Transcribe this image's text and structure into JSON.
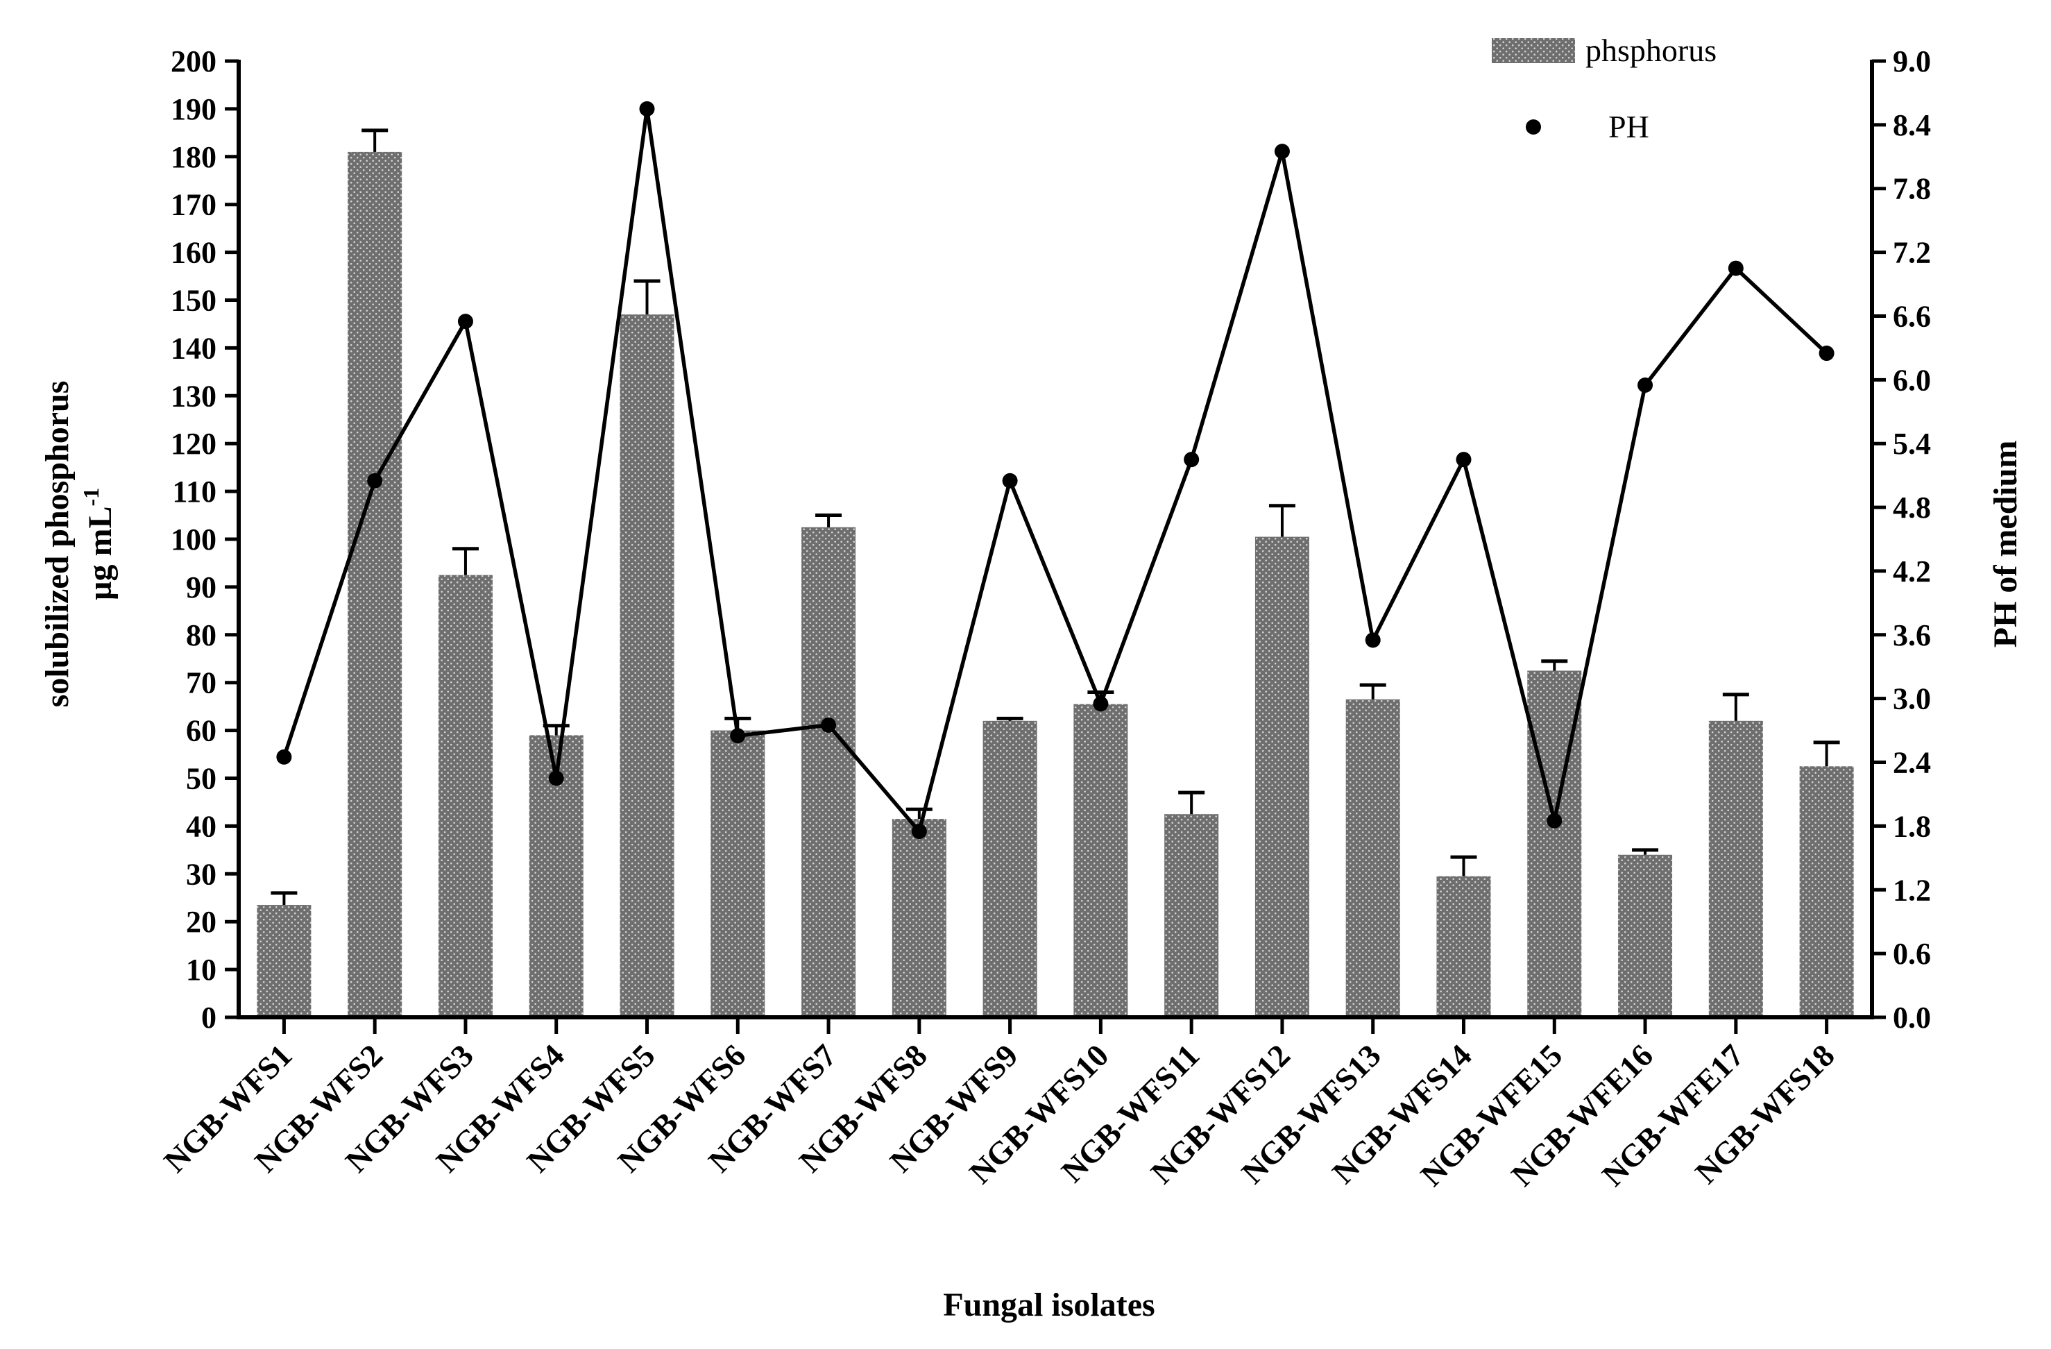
{
  "chart_data": {
    "type": "bar",
    "title": "",
    "xlabel": "Fungal isolates",
    "ylabel_line1": "solubilized phosphorus",
    "ylabel_unit_base": "µg mL",
    "ylabel_unit_sup": "-1",
    "y2label": "PH of medium",
    "ylim": [
      0,
      200
    ],
    "y2lim": [
      0,
      9.0
    ],
    "yticks": [
      "0",
      "10",
      "20",
      "30",
      "40",
      "50",
      "60",
      "70",
      "80",
      "90",
      "100",
      "110",
      "120",
      "130",
      "140",
      "150",
      "160",
      "170",
      "180",
      "190",
      "200"
    ],
    "y2ticks": [
      "0.0",
      "0.6",
      "1.2",
      "1.8",
      "2.4",
      "3.0",
      "3.6",
      "4.2",
      "4.8",
      "5.4",
      "6.0",
      "6.6",
      "7.2",
      "7.8",
      "8.4",
      "9.0"
    ],
    "categories": [
      "NGB-WFS1",
      "NGB-WFS2",
      "NGB-WFS3",
      "NGB-WFS4",
      "NGB-WFS5",
      "NGB-WFS6",
      "NGB-WFS7",
      "NGB-WFS8",
      "NGB-WFS9",
      "NGB-WFS10",
      "NGB-WFS11",
      "NGB-WFS12",
      "NGB-WFS13",
      "NGB-WFS14",
      "NGB-WFE15",
      "NGB-WFE16",
      "NGB-WFE17",
      "NGB-WFS18"
    ],
    "series": [
      {
        "name": "phsphorus",
        "kind": "bar",
        "axis": "left",
        "values": [
          23.5,
          181,
          92.5,
          59,
          147,
          60,
          102.5,
          41.5,
          62,
          65.5,
          42.5,
          100.5,
          66.5,
          29.5,
          72.5,
          34,
          62,
          52.5
        ],
        "errors": [
          2.5,
          4.5,
          5.5,
          2.0,
          7.0,
          2.5,
          2.5,
          2.0,
          0.5,
          2.5,
          4.5,
          6.5,
          3.0,
          4.0,
          2.0,
          1.0,
          5.5,
          5.0
        ]
      },
      {
        "name": "PH",
        "kind": "line",
        "axis": "right",
        "values": [
          2.45,
          5.05,
          6.55,
          2.25,
          8.55,
          2.65,
          2.75,
          1.75,
          5.05,
          2.95,
          5.25,
          8.15,
          3.55,
          5.25,
          1.85,
          5.95,
          7.05,
          6.25
        ]
      }
    ],
    "legend": [
      "phsphorus",
      "PH"
    ],
    "legend_position": "top-right",
    "colors": {
      "bar": "#6e6e6e",
      "bar_dot": "#d2d2d2",
      "line": "#000000",
      "axis": "#000000"
    }
  }
}
